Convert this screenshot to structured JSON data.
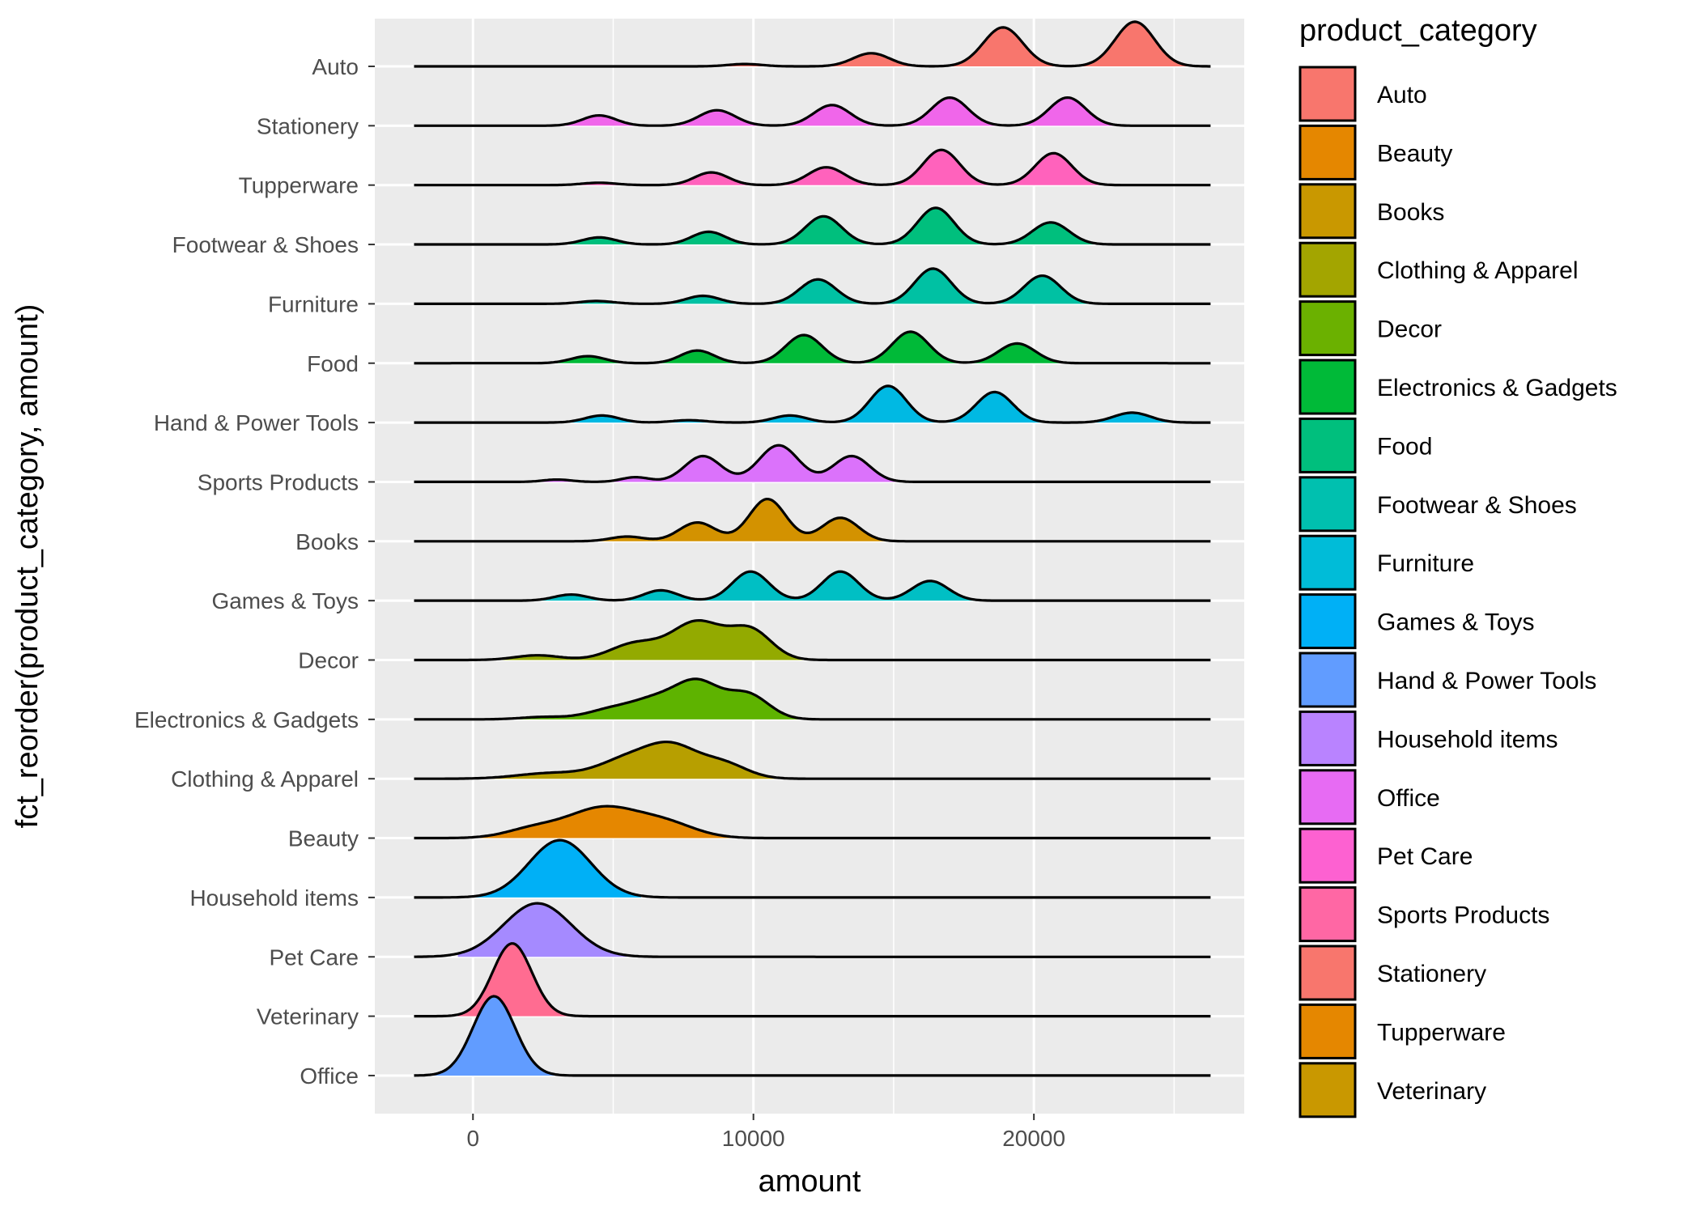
{
  "chart_data": {
    "type": "ridgeline",
    "xlabel": "amount",
    "ylabel": "fct_reorder(product_category, amount)",
    "xlim": [
      -3500,
      27500
    ],
    "x_ticks": [
      0,
      10000,
      20000
    ],
    "x_tick_labels": [
      "0",
      "10000",
      "20000"
    ],
    "grid": true,
    "legend": {
      "title": "product_category",
      "position": "right",
      "items": [
        {
          "label": "Auto",
          "color": "#F8766D"
        },
        {
          "label": "Beauty",
          "color": "#E58700"
        },
        {
          "label": "Books",
          "color": "#C99800"
        },
        {
          "label": "Clothing & Apparel",
          "color": "#A3A500"
        },
        {
          "label": "Decor",
          "color": "#6BB100"
        },
        {
          "label": "Electronics & Gadgets",
          "color": "#00BA38"
        },
        {
          "label": "Food",
          "color": "#00BF7D"
        },
        {
          "label": "Footwear & Shoes",
          "color": "#00C0AF"
        },
        {
          "label": "Furniture",
          "color": "#00BCD8"
        },
        {
          "label": "Games & Toys",
          "color": "#00B0F6"
        },
        {
          "label": "Hand & Power Tools",
          "color": "#619CFF"
        },
        {
          "label": "Household items",
          "color": "#B983FF"
        },
        {
          "label": "Office",
          "color": "#E76BF3"
        },
        {
          "label": "Pet Care",
          "color": "#FD61D1"
        },
        {
          "label": "Sports Products",
          "color": "#FF67A4"
        },
        {
          "label": "Stationery",
          "color": "#F8766D"
        },
        {
          "label": "Tupperware",
          "color": "#E58700"
        },
        {
          "label": "Veterinary",
          "color": "#C99800"
        }
      ]
    },
    "series": [
      {
        "name": "Auto",
        "color": "#F8766D",
        "xmin": -2100,
        "xmax": 26300,
        "fill_from": 4600,
        "fill_to": 26300,
        "peaks": [
          [
            9700,
            0.05,
            600
          ],
          [
            14200,
            0.28,
            650
          ],
          [
            18900,
            0.83,
            700
          ],
          [
            23600,
            0.95,
            700
          ]
        ]
      },
      {
        "name": "Stationery",
        "color": "#F066EA",
        "xmin": -2100,
        "xmax": 26300,
        "fill_from": 2000,
        "fill_to": 24500,
        "peaks": [
          [
            4500,
            0.22,
            600
          ],
          [
            8700,
            0.33,
            650
          ],
          [
            12800,
            0.44,
            650
          ],
          [
            17000,
            0.6,
            650
          ],
          [
            21200,
            0.6,
            650
          ]
        ]
      },
      {
        "name": "Tupperware",
        "color": "#FF62BC",
        "xmin": -2100,
        "xmax": 26300,
        "fill_from": 2000,
        "fill_to": 23800,
        "peaks": [
          [
            4500,
            0.05,
            600
          ],
          [
            8500,
            0.27,
            600
          ],
          [
            12600,
            0.38,
            650
          ],
          [
            16700,
            0.75,
            650
          ],
          [
            20700,
            0.68,
            650
          ]
        ]
      },
      {
        "name": "Footwear & Shoes",
        "color": "#00BF7D",
        "xmin": -2100,
        "xmax": 26300,
        "fill_from": 2000,
        "fill_to": 23800,
        "peaks": [
          [
            4500,
            0.15,
            600
          ],
          [
            8400,
            0.27,
            600
          ],
          [
            12500,
            0.6,
            650
          ],
          [
            16500,
            0.78,
            650
          ],
          [
            20600,
            0.47,
            650
          ]
        ]
      },
      {
        "name": "Furniture",
        "color": "#00C1A3",
        "xmin": -2100,
        "xmax": 26300,
        "fill_from": 2000,
        "fill_to": 23800,
        "peaks": [
          [
            4400,
            0.06,
            600
          ],
          [
            8200,
            0.17,
            600
          ],
          [
            12300,
            0.52,
            650
          ],
          [
            16400,
            0.75,
            650
          ],
          [
            20300,
            0.6,
            650
          ]
        ]
      },
      {
        "name": "Food",
        "color": "#00BA38",
        "xmin": -2100,
        "xmax": 26300,
        "fill_from": 2000,
        "fill_to": 23800,
        "peaks": [
          [
            4100,
            0.15,
            600
          ],
          [
            8000,
            0.27,
            600
          ],
          [
            11800,
            0.6,
            650
          ],
          [
            15600,
            0.67,
            650
          ],
          [
            19400,
            0.42,
            650
          ]
        ]
      },
      {
        "name": "Hand & Power Tools",
        "color": "#00B9E3",
        "xmin": -2100,
        "xmax": 26300,
        "fill_from": 2000,
        "fill_to": 26000,
        "peaks": [
          [
            4600,
            0.15,
            600
          ],
          [
            7700,
            0.05,
            600
          ],
          [
            11300,
            0.15,
            600
          ],
          [
            14800,
            0.78,
            650
          ],
          [
            18600,
            0.65,
            650
          ],
          [
            23500,
            0.21,
            650
          ]
        ]
      },
      {
        "name": "Sports Products",
        "color": "#DB72FB",
        "xmin": -2100,
        "xmax": 26300,
        "fill_from": 1500,
        "fill_to": 16000,
        "peaks": [
          [
            3000,
            0.05,
            500
          ],
          [
            5800,
            0.1,
            500
          ],
          [
            8200,
            0.55,
            650
          ],
          [
            10900,
            0.78,
            700
          ],
          [
            13500,
            0.55,
            650
          ]
        ]
      },
      {
        "name": "Books",
        "color": "#D39200",
        "xmin": -2100,
        "xmax": 26300,
        "fill_from": 3000,
        "fill_to": 16000,
        "peaks": [
          [
            5500,
            0.1,
            600
          ],
          [
            8000,
            0.4,
            650
          ],
          [
            10500,
            0.9,
            650
          ],
          [
            13100,
            0.5,
            650
          ]
        ]
      },
      {
        "name": "Games & Toys",
        "color": "#00BFC4",
        "xmin": -2100,
        "xmax": 26300,
        "fill_from": 1800,
        "fill_to": 18500,
        "peaks": [
          [
            3500,
            0.13,
            600
          ],
          [
            6700,
            0.22,
            600
          ],
          [
            9900,
            0.62,
            650
          ],
          [
            13100,
            0.62,
            650
          ],
          [
            16300,
            0.42,
            650
          ]
        ]
      },
      {
        "name": "Decor",
        "color": "#93AA00",
        "xmin": -2100,
        "xmax": 26300,
        "fill_from": 500,
        "fill_to": 12500,
        "peaks": [
          [
            2300,
            0.1,
            800
          ],
          [
            5800,
            0.35,
            900
          ],
          [
            8000,
            0.8,
            900
          ],
          [
            9900,
            0.62,
            750
          ]
        ]
      },
      {
        "name": "Electronics & Gadgets",
        "color": "#5EB300",
        "xmin": -2100,
        "xmax": 26300,
        "fill_from": 500,
        "fill_to": 12500,
        "peaks": [
          [
            2500,
            0.05,
            800
          ],
          [
            5000,
            0.22,
            900
          ],
          [
            6500,
            0.35,
            800
          ],
          [
            8000,
            0.77,
            800
          ],
          [
            9800,
            0.52,
            750
          ]
        ]
      },
      {
        "name": "Clothing & Apparel",
        "color": "#B79F00",
        "xmin": -2100,
        "xmax": 26300,
        "fill_from": 0,
        "fill_to": 11000,
        "peaks": [
          [
            2800,
            0.12,
            1200
          ],
          [
            5500,
            0.4,
            1000
          ],
          [
            7100,
            0.63,
            900
          ],
          [
            8900,
            0.32,
            850
          ]
        ]
      },
      {
        "name": "Beauty",
        "color": "#E58700",
        "xmin": -2100,
        "xmax": 26300,
        "fill_from": 0,
        "fill_to": 9500,
        "peaks": [
          [
            2200,
            0.2,
            1000
          ],
          [
            4600,
            0.62,
            1200
          ],
          [
            6800,
            0.32,
            1100
          ]
        ]
      },
      {
        "name": "Household items",
        "color": "#00B0F6",
        "xmin": -2100,
        "xmax": 26300,
        "fill_from": 0,
        "fill_to": 6000,
        "peaks": [
          [
            3100,
            1.22,
            1100
          ]
        ]
      },
      {
        "name": "Pet Care",
        "color": "#A58AFF",
        "xmin": -2100,
        "xmax": 26300,
        "fill_from": -600,
        "fill_to": 5500,
        "peaks": [
          [
            2300,
            1.14,
            1200
          ]
        ]
      },
      {
        "name": "Veterinary",
        "color": "#FF6C91",
        "xmin": -2100,
        "xmax": 26300,
        "fill_from": -600,
        "fill_to": 4000,
        "peaks": [
          [
            1400,
            1.55,
            700
          ]
        ]
      },
      {
        "name": "Office",
        "color": "#619CFF",
        "xmin": -2100,
        "xmax": 26300,
        "fill_from": -1500,
        "fill_to": 3500,
        "peaks": [
          [
            750,
            1.69,
            750
          ]
        ]
      }
    ]
  }
}
